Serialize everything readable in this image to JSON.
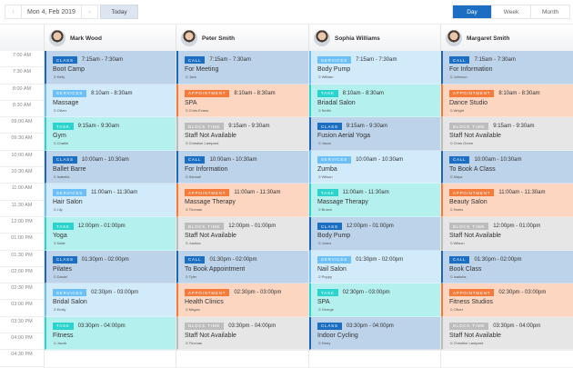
{
  "toolbar": {
    "date": "Mon 4, Feb 2019",
    "today": "Today",
    "prev": "‹",
    "next": "›",
    "views": [
      "Day",
      "Week",
      "Month"
    ],
    "active_view": "Day"
  },
  "staff": [
    "Mark Wood",
    "Peter Smith",
    "Sophia Williams",
    "Margaret Smith"
  ],
  "times": [
    "7:00 AM",
    "7:30 AM",
    "8:00 AM",
    "8:30 AM",
    "09:00 AM",
    "09:30 AM",
    "10:00 AM",
    "10:30 AM",
    "11:00 AM",
    "11:30 AM",
    "12:00 PM",
    "01:00 PM",
    "01:30 PM",
    "02:00 PM",
    "02:30 PM",
    "03:00 PM",
    "03:30 PM",
    "04:00 PM",
    "04:30 PM"
  ],
  "types": {
    "class": {
      "label": "CLASS",
      "bg": "#bdd3ea",
      "border": "#1b66b8",
      "badge": "#1b6ec2"
    },
    "call": {
      "label": "CALL",
      "bg": "#bdd3ea",
      "border": "#1b66b8",
      "badge": "#1b6ec2"
    },
    "services": {
      "label": "SERVICES",
      "bg": "#d1ebfb",
      "border": "#6cbff5",
      "badge": "#6cc0f7"
    },
    "appointment": {
      "label": "APPOINTMENT",
      "bg": "#fcd6c1",
      "border": "#f47b3a",
      "badge": "#f47b3a"
    },
    "task": {
      "label": "TASK",
      "bg": "#b4f0ee",
      "border": "#2ad3cb",
      "badge": "#2ad3cb"
    },
    "block": {
      "label": "BLOCK TIME",
      "bg": "#e6e6e6",
      "border": "#bbbbbb",
      "badge": "#bdbdbd"
    }
  },
  "events": [
    [
      {
        "type": "class",
        "time": "7:15am - 7:30am",
        "title": "Boot Camp",
        "who": "Kelly"
      },
      {
        "type": "services",
        "time": "8:10am - 8:30am",
        "title": "Massage",
        "who": "Oliver"
      },
      {
        "type": "task",
        "time": "9:15am - 9:30am",
        "title": "Gym",
        "who": "Charlie"
      },
      {
        "type": "class",
        "time": "10:00am - 10:30am",
        "title": "Ballet Barre",
        "who": "Isabella"
      },
      {
        "type": "services",
        "time": "11:00am - 11:30am",
        "title": "Hair Salon",
        "who": "Lily"
      },
      {
        "type": "task",
        "time": "12:00pm - 01:00pm",
        "title": "Yoga",
        "who": "Katie"
      },
      {
        "type": "class",
        "time": "01:30pm - 02:00pm",
        "title": "Pilates",
        "who": "Daniel"
      },
      {
        "type": "services",
        "time": "02:30pm - 03:00pm",
        "title": "Bridal Salon",
        "who": "Emily"
      },
      {
        "type": "task",
        "time": "03:30pm - 04:00pm",
        "title": "Fitness",
        "who": "Jacob"
      }
    ],
    [
      {
        "type": "call",
        "time": "7:15am - 7:30am",
        "title": "For Meeting",
        "who": "Jack"
      },
      {
        "type": "appointment",
        "time": "8:10am - 8:30am",
        "title": "SPA",
        "who": "Chris Evans"
      },
      {
        "type": "block",
        "time": "9:15am - 9:30am",
        "title": "Staff Not Available",
        "who": "Christine Lampard"
      },
      {
        "type": "call",
        "time": "10:00am - 10:30am",
        "title": "For Information",
        "who": "Samuel"
      },
      {
        "type": "appointment",
        "time": "11:00am - 11:30am",
        "title": "Massage Therapy",
        "who": "Thomas"
      },
      {
        "type": "block",
        "time": "12:00pm - 01:00pm",
        "title": "Staff Not Available",
        "who": "Joshua"
      },
      {
        "type": "call",
        "time": "01:30pm - 02:00pm",
        "title": "To Book Appointment",
        "who": "Tyler"
      },
      {
        "type": "appointment",
        "time": "02:30pm - 03:00pm",
        "title": "Health Clinics",
        "who": "Megan"
      },
      {
        "type": "block",
        "time": "03:30pm - 04:00pm",
        "title": "Staff Not Available",
        "who": "Thomas"
      }
    ],
    [
      {
        "type": "services",
        "time": "7:15am - 7:30am",
        "title": "Body Pump",
        "who": "William"
      },
      {
        "type": "task",
        "time": "8:10am - 8:30am",
        "title": "Briadal Salon",
        "who": "Smith"
      },
      {
        "type": "class",
        "time": "9:15am - 9:30am",
        "title": "Fusion Aerial Yoga",
        "who": "Jason"
      },
      {
        "type": "services",
        "time": "10:00am - 10:30am",
        "title": "Zumba",
        "who": "Wilson"
      },
      {
        "type": "task",
        "time": "11:00am - 11:30am",
        "title": "Massage Therapy",
        "who": "Brown"
      },
      {
        "type": "class",
        "time": "12:00pm - 01:00pm",
        "title": "Body Pump",
        "who": "Jones"
      },
      {
        "type": "services",
        "time": "01:30pm - 02:00pm",
        "title": "Nail Salon",
        "who": "Poppy"
      },
      {
        "type": "task",
        "time": "02:30pm - 03:00pm",
        "title": "SPA",
        "who": "George"
      },
      {
        "type": "class",
        "time": "03:30pm - 04:00pm",
        "title": "Indoor Cycling",
        "who": "Harry"
      }
    ],
    [
      {
        "type": "call",
        "time": "7:15am - 7:30am",
        "title": "For Information",
        "who": "Johnson"
      },
      {
        "type": "appointment",
        "time": "8:10am - 8:30am",
        "title": "Dance Studio",
        "who": "Wright"
      },
      {
        "type": "block",
        "time": "9:15am - 9:30am",
        "title": "Staff Not Available",
        "who": "Chris Green"
      },
      {
        "type": "call",
        "time": "10:00am - 10:30am",
        "title": "To Book A Class",
        "who": "Maya"
      },
      {
        "type": "appointment",
        "time": "11:00am - 11:30am",
        "title": "Beauty Salon",
        "who": "Harris"
      },
      {
        "type": "block",
        "time": "12:00pm - 01:00pm",
        "title": "Staff Not Available",
        "who": "Wilson"
      },
      {
        "type": "call",
        "time": "01:30pm - 02:00pm",
        "title": "Book Class",
        "who": "Isabella"
      },
      {
        "type": "appointment",
        "time": "02:30pm - 03:00pm",
        "title": "Fitness Studios",
        "who": "Oliver"
      },
      {
        "type": "block",
        "time": "03:30pm - 04:00pm",
        "title": "Staff Not Available",
        "who": "Christine Lampard"
      }
    ]
  ]
}
